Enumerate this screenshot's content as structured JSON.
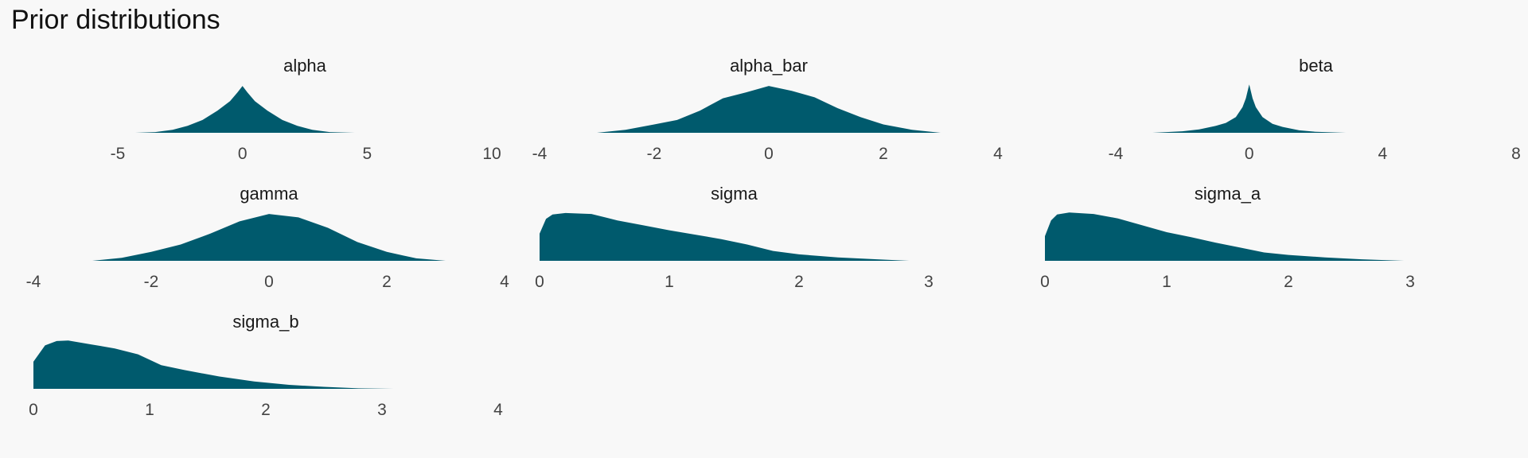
{
  "title": "Prior distributions",
  "colors": {
    "fill": "#005a6d",
    "background": "#f8f8f8"
  },
  "chart_data": [
    {
      "type": "area",
      "title": "alpha",
      "xlim": [
        -5,
        10
      ],
      "xticks": [
        -5,
        0,
        5,
        10
      ],
      "x": [
        -4.3,
        -3.5,
        -2.8,
        -2.2,
        -1.6,
        -1.0,
        -0.5,
        -0.2,
        0.0,
        0.2,
        0.5,
        1.0,
        1.6,
        2.2,
        2.8,
        3.5,
        4.5
      ],
      "y": [
        0.0,
        0.015,
        0.06,
        0.14,
        0.26,
        0.45,
        0.64,
        0.82,
        0.95,
        0.82,
        0.64,
        0.45,
        0.26,
        0.14,
        0.06,
        0.015,
        0.0
      ]
    },
    {
      "type": "area",
      "title": "alpha_bar",
      "xlim": [
        -4,
        4
      ],
      "xticks": [
        -4,
        -2,
        0,
        2,
        4
      ],
      "x": [
        -3.0,
        -2.5,
        -2.0,
        -1.6,
        -1.2,
        -0.8,
        -0.4,
        0.0,
        0.4,
        0.8,
        1.2,
        1.6,
        2.0,
        2.5,
        3.0
      ],
      "y": [
        0.0,
        0.06,
        0.17,
        0.26,
        0.45,
        0.7,
        0.82,
        0.95,
        0.85,
        0.72,
        0.5,
        0.32,
        0.17,
        0.06,
        0.0
      ]
    },
    {
      "type": "area",
      "title": "beta",
      "xlim": [
        -4,
        8
      ],
      "xticks": [
        -4,
        0,
        4,
        8
      ],
      "x": [
        -2.9,
        -2.0,
        -1.5,
        -1.0,
        -0.7,
        -0.4,
        -0.2,
        -0.1,
        0.0,
        0.1,
        0.2,
        0.4,
        0.7,
        1.0,
        1.5,
        2.0,
        2.9
      ],
      "y": [
        0.0,
        0.03,
        0.07,
        0.14,
        0.2,
        0.32,
        0.52,
        0.7,
        0.98,
        0.7,
        0.52,
        0.32,
        0.18,
        0.12,
        0.05,
        0.02,
        0.0
      ]
    },
    {
      "type": "area",
      "title": "gamma",
      "xlim": [
        -4,
        4
      ],
      "xticks": [
        -4,
        -2,
        0,
        2,
        4
      ],
      "x": [
        -3.0,
        -2.5,
        -2.0,
        -1.5,
        -1.0,
        -0.5,
        0.0,
        0.5,
        1.0,
        1.5,
        2.0,
        2.5,
        3.0
      ],
      "y": [
        0.0,
        0.06,
        0.18,
        0.33,
        0.55,
        0.8,
        0.95,
        0.88,
        0.67,
        0.38,
        0.18,
        0.05,
        0.0
      ]
    },
    {
      "type": "area",
      "title": "sigma",
      "xlim": [
        0,
        3
      ],
      "xticks": [
        0,
        1,
        2,
        3
      ],
      "x": [
        0.0,
        0.05,
        0.1,
        0.2,
        0.4,
        0.6,
        0.8,
        1.0,
        1.2,
        1.4,
        1.6,
        1.8,
        2.0,
        2.3,
        2.6,
        2.85
      ],
      "y": [
        0.55,
        0.85,
        0.94,
        0.97,
        0.95,
        0.82,
        0.72,
        0.62,
        0.53,
        0.44,
        0.33,
        0.2,
        0.13,
        0.07,
        0.03,
        0.0
      ]
    },
    {
      "type": "area",
      "title": "sigma_a",
      "xlim": [
        0,
        3
      ],
      "xticks": [
        0,
        1,
        2,
        3
      ],
      "x": [
        0.0,
        0.05,
        0.1,
        0.2,
        0.4,
        0.6,
        0.8,
        1.0,
        1.2,
        1.4,
        1.6,
        1.8,
        2.0,
        2.3,
        2.6,
        2.95
      ],
      "y": [
        0.5,
        0.82,
        0.94,
        0.98,
        0.95,
        0.86,
        0.72,
        0.58,
        0.48,
        0.37,
        0.27,
        0.17,
        0.12,
        0.07,
        0.03,
        0.0
      ]
    },
    {
      "type": "area",
      "title": "sigma_b",
      "xlim": [
        0,
        4
      ],
      "xticks": [
        0,
        1,
        2,
        3,
        4
      ],
      "x": [
        0.0,
        0.1,
        0.2,
        0.3,
        0.5,
        0.7,
        0.9,
        1.1,
        1.3,
        1.6,
        1.9,
        2.2,
        2.5,
        2.8,
        3.1
      ],
      "y": [
        0.55,
        0.88,
        0.97,
        0.98,
        0.9,
        0.82,
        0.7,
        0.48,
        0.38,
        0.25,
        0.15,
        0.08,
        0.04,
        0.01,
        0.0
      ]
    }
  ]
}
